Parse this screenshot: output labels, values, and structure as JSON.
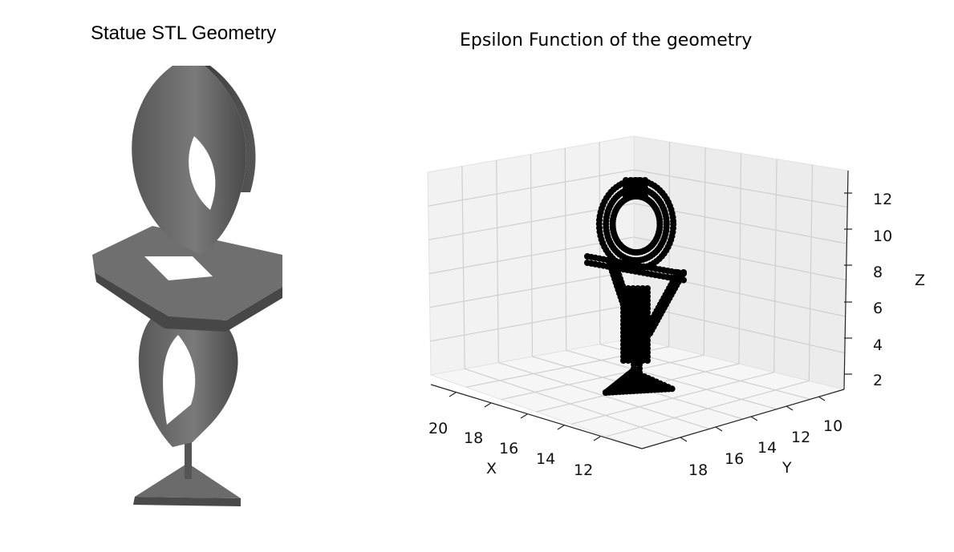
{
  "figure": {
    "left_panel": {
      "title": "Statue STL Geometry"
    },
    "right_panel": {
      "title": "Epsilon Function of the geometry"
    }
  },
  "chart_data": {
    "type": "scatter",
    "projection": "3d",
    "title": "Epsilon Function of the geometry",
    "xlabel": "X",
    "ylabel": "Y",
    "zlabel": "Z",
    "x_ticks": [
      "20",
      "18",
      "16",
      "14",
      "12"
    ],
    "y_ticks": [
      "18",
      "16",
      "14",
      "12",
      "10"
    ],
    "z_ticks": [
      "2",
      "4",
      "6",
      "8",
      "10",
      "12"
    ],
    "xlim": [
      11,
      21
    ],
    "ylim": [
      9,
      19
    ],
    "zlim": [
      1.5,
      13
    ],
    "grid": true,
    "marker_color": "#000000",
    "pane_color": "#f2f2f2",
    "geometry_color": "#666666"
  }
}
